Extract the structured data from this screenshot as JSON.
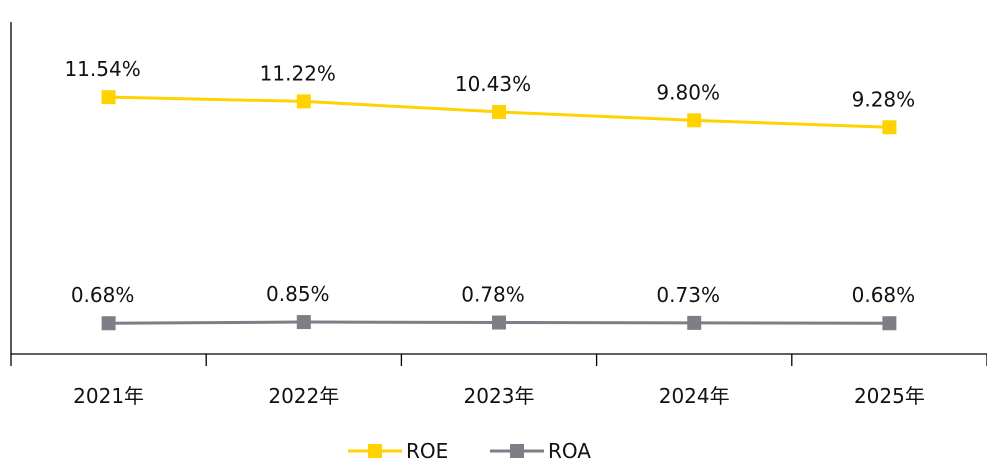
{
  "chart_data": {
    "type": "line",
    "categories": [
      "2021年",
      "2022年",
      "2023年",
      "2024年",
      "2025年"
    ],
    "series": [
      {
        "name": "ROE",
        "values": [
          11.54,
          11.22,
          10.43,
          9.8,
          9.28
        ],
        "labels": [
          "11.54%",
          "11.22%",
          "10.43%",
          "9.80%",
          "9.28%"
        ],
        "color": "#FFD200",
        "marker": "square"
      },
      {
        "name": "ROA",
        "values": [
          0.68,
          0.85,
          0.78,
          0.73,
          0.68
        ],
        "labels": [
          "0.68%",
          "0.85%",
          "0.78%",
          "0.73%",
          "0.68%"
        ],
        "color": "#7F7E86",
        "marker": "square"
      }
    ],
    "axis_color": "#000000",
    "legend_position": "bottom-center",
    "grid": false
  }
}
